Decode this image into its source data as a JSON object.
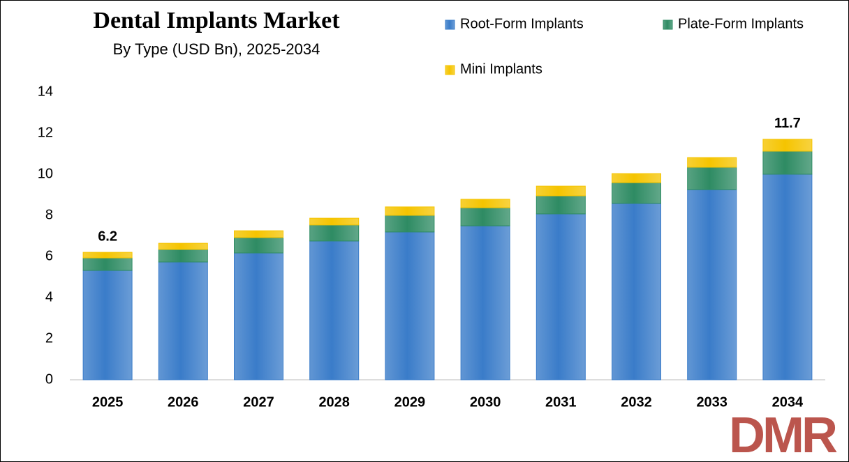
{
  "chart_data": {
    "type": "stacked_bar",
    "title": "Dental Implants Market",
    "subtitle": "By Type (USD Bn), 2025-2034",
    "categories": [
      "2025",
      "2026",
      "2027",
      "2028",
      "2029",
      "2030",
      "2031",
      "2032",
      "2033",
      "2034"
    ],
    "series": [
      {
        "name": "Root-Form Implants",
        "color": "#3a7cc9",
        "values": [
          5.32,
          5.73,
          6.17,
          6.75,
          7.19,
          7.49,
          8.07,
          8.58,
          9.25,
          10.0
        ]
      },
      {
        "name": "Plate-Form Implants",
        "color": "#2e8b63",
        "values": [
          0.61,
          0.61,
          0.75,
          0.78,
          0.81,
          0.88,
          0.88,
          1.01,
          1.09,
          1.12
        ]
      },
      {
        "name": "Mini Implants",
        "color": "#f5c400",
        "values": [
          0.27,
          0.3,
          0.33,
          0.33,
          0.41,
          0.41,
          0.47,
          0.44,
          0.47,
          0.58
        ]
      }
    ],
    "annotations": [
      {
        "x": "2025",
        "value": 6.2
      },
      {
        "x": "2034",
        "value": 11.7
      }
    ],
    "ylim": [
      0,
      14
    ],
    "yticks": [
      0,
      2,
      4,
      6,
      8,
      10,
      12,
      14
    ],
    "grid": false,
    "logo": "DMR"
  }
}
